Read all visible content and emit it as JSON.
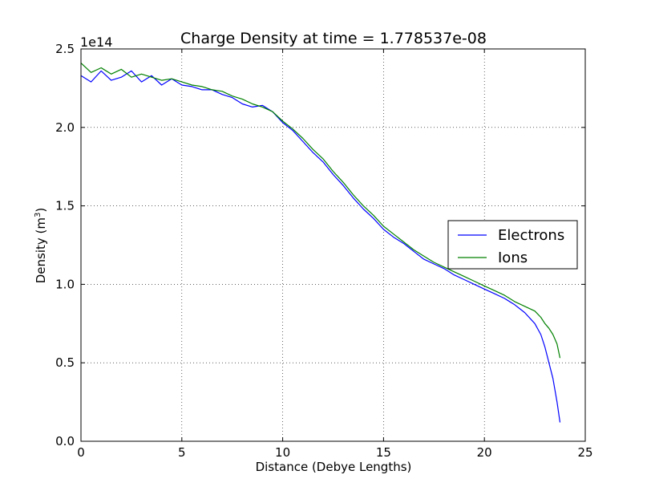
{
  "chart_data": {
    "type": "line",
    "title": "Charge Density at time = 1.778537e-08",
    "xlabel": "Distance (Debye Lengths)",
    "ylabel": "Density (m",
    "ylabel_sup": "3",
    "ylabel_close": ")",
    "y_offset_label": "1e14",
    "xlim": [
      0,
      25
    ],
    "ylim": [
      0.0,
      2.5
    ],
    "x_ticks": [
      0,
      5,
      10,
      15,
      20,
      25
    ],
    "x_tick_labels": [
      "0",
      "5",
      "10",
      "15",
      "20",
      "25"
    ],
    "y_ticks": [
      0.0,
      0.5,
      1.0,
      1.5,
      2.0,
      2.5
    ],
    "y_tick_labels": [
      "0.0",
      "0.5",
      "1.0",
      "1.5",
      "2.0",
      "2.5"
    ],
    "grid": true,
    "legend_position": "right",
    "series": [
      {
        "name": "Electrons",
        "color": "#0000ff",
        "x": [
          0,
          0.5,
          1,
          1.5,
          2,
          2.5,
          3,
          3.5,
          4,
          4.5,
          5,
          5.5,
          6,
          6.5,
          7,
          7.5,
          8,
          8.5,
          9,
          9.5,
          10,
          10.5,
          11,
          11.5,
          12,
          12.5,
          13,
          13.5,
          14,
          14.5,
          15,
          15.5,
          16,
          16.5,
          17,
          17.5,
          18,
          18.5,
          19,
          19.5,
          20,
          20.5,
          21,
          21.5,
          22,
          22.5,
          22.8,
          23,
          23.2,
          23.4,
          23.6,
          23.75
        ],
        "y": [
          2.33,
          2.29,
          2.36,
          2.3,
          2.32,
          2.36,
          2.29,
          2.33,
          2.27,
          2.31,
          2.27,
          2.26,
          2.24,
          2.24,
          2.21,
          2.19,
          2.15,
          2.13,
          2.14,
          2.1,
          2.03,
          1.98,
          1.91,
          1.84,
          1.78,
          1.7,
          1.63,
          1.55,
          1.48,
          1.42,
          1.35,
          1.3,
          1.26,
          1.21,
          1.16,
          1.13,
          1.1,
          1.06,
          1.03,
          1.0,
          0.97,
          0.94,
          0.91,
          0.87,
          0.82,
          0.75,
          0.68,
          0.6,
          0.5,
          0.4,
          0.25,
          0.12
        ]
      },
      {
        "name": "Ions",
        "color": "#008000",
        "x": [
          0,
          0.5,
          1,
          1.5,
          2,
          2.5,
          3,
          3.5,
          4,
          4.5,
          5,
          5.5,
          6,
          6.5,
          7,
          7.5,
          8,
          8.5,
          9,
          9.5,
          10,
          10.5,
          11,
          11.5,
          12,
          12.5,
          13,
          13.5,
          14,
          14.5,
          15,
          15.5,
          16,
          16.5,
          17,
          17.5,
          18,
          18.5,
          19,
          19.5,
          20,
          20.5,
          21,
          21.5,
          22,
          22.5,
          22.8,
          23,
          23.2,
          23.4,
          23.6,
          23.75
        ],
        "y": [
          2.41,
          2.35,
          2.38,
          2.34,
          2.37,
          2.32,
          2.34,
          2.32,
          2.3,
          2.31,
          2.29,
          2.27,
          2.26,
          2.24,
          2.23,
          2.2,
          2.18,
          2.15,
          2.13,
          2.1,
          2.04,
          1.99,
          1.93,
          1.86,
          1.8,
          1.72,
          1.65,
          1.57,
          1.5,
          1.44,
          1.37,
          1.32,
          1.27,
          1.22,
          1.18,
          1.14,
          1.11,
          1.08,
          1.05,
          1.02,
          0.99,
          0.96,
          0.93,
          0.89,
          0.86,
          0.83,
          0.79,
          0.75,
          0.72,
          0.68,
          0.62,
          0.53
        ]
      }
    ]
  }
}
